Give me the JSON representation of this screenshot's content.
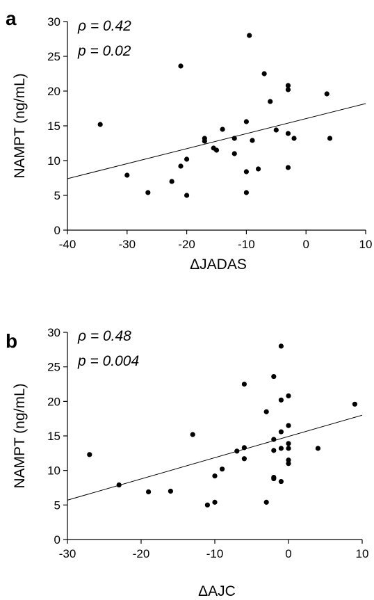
{
  "chart_data": [
    {
      "type": "scatter",
      "panel_label": "a",
      "annotations": [
        "ρ = 0.42",
        "p = 0.02"
      ],
      "xlabel": "ΔJADAS",
      "ylabel": "NAMPT (ng/mL)",
      "xlim": [
        -40,
        10
      ],
      "ylim": [
        0,
        30
      ],
      "xticks": [
        -40,
        -30,
        -20,
        -10,
        0,
        10
      ],
      "yticks": [
        0,
        5,
        10,
        15,
        20,
        25,
        30
      ],
      "trendline": {
        "x": [
          -40,
          10
        ],
        "y": [
          7.4,
          18.2
        ]
      },
      "points": [
        {
          "x": -34.5,
          "y": 15.2
        },
        {
          "x": -30,
          "y": 7.9
        },
        {
          "x": -26.5,
          "y": 5.4
        },
        {
          "x": -22.5,
          "y": 7.0
        },
        {
          "x": -21,
          "y": 23.6
        },
        {
          "x": -21,
          "y": 9.2
        },
        {
          "x": -20,
          "y": 10.2
        },
        {
          "x": -20,
          "y": 5.0
        },
        {
          "x": -17,
          "y": 13.2
        },
        {
          "x": -17,
          "y": 12.8
        },
        {
          "x": -15.5,
          "y": 11.8
        },
        {
          "x": -15,
          "y": 11.5
        },
        {
          "x": -14,
          "y": 14.5
        },
        {
          "x": -12,
          "y": 13.2
        },
        {
          "x": -12,
          "y": 11.0
        },
        {
          "x": -10,
          "y": 15.6
        },
        {
          "x": -10,
          "y": 8.4
        },
        {
          "x": -10,
          "y": 5.4
        },
        {
          "x": -9.5,
          "y": 28.0
        },
        {
          "x": -9,
          "y": 12.9
        },
        {
          "x": -8,
          "y": 8.8
        },
        {
          "x": -7,
          "y": 22.5
        },
        {
          "x": -6,
          "y": 18.5
        },
        {
          "x": -5,
          "y": 14.4
        },
        {
          "x": -3,
          "y": 20.8
        },
        {
          "x": -3,
          "y": 20.2
        },
        {
          "x": -3,
          "y": 13.9
        },
        {
          "x": -3,
          "y": 9.0
        },
        {
          "x": -2,
          "y": 13.2
        },
        {
          "x": 3.5,
          "y": 19.6
        },
        {
          "x": 4,
          "y": 13.2
        }
      ]
    },
    {
      "type": "scatter",
      "panel_label": "b",
      "annotations": [
        "ρ = 0.48",
        "p = 0.004"
      ],
      "xlabel": "ΔAJC",
      "ylabel": "NAMPT (ng/mL)",
      "xlim": [
        -30,
        10
      ],
      "ylim": [
        0,
        30
      ],
      "xticks": [
        -30,
        -20,
        -10,
        0,
        10
      ],
      "yticks": [
        0,
        5,
        10,
        15,
        20,
        25,
        30
      ],
      "trendline": {
        "x": [
          -30,
          10
        ],
        "y": [
          5.7,
          18.0
        ]
      },
      "points": [
        {
          "x": -27,
          "y": 12.3
        },
        {
          "x": -23,
          "y": 7.9
        },
        {
          "x": -19,
          "y": 6.9
        },
        {
          "x": -16,
          "y": 7.0
        },
        {
          "x": -13,
          "y": 15.2
        },
        {
          "x": -11,
          "y": 5.0
        },
        {
          "x": -10,
          "y": 9.2
        },
        {
          "x": -10,
          "y": 5.4
        },
        {
          "x": -9,
          "y": 10.2
        },
        {
          "x": -7,
          "y": 12.8
        },
        {
          "x": -6,
          "y": 22.5
        },
        {
          "x": -6,
          "y": 13.3
        },
        {
          "x": -6,
          "y": 11.7
        },
        {
          "x": -3,
          "y": 18.5
        },
        {
          "x": -3,
          "y": 5.4
        },
        {
          "x": -2,
          "y": 23.6
        },
        {
          "x": -2,
          "y": 14.5
        },
        {
          "x": -2,
          "y": 12.9
        },
        {
          "x": -2,
          "y": 9.0
        },
        {
          "x": -2,
          "y": 8.8
        },
        {
          "x": -1,
          "y": 28.0
        },
        {
          "x": -1,
          "y": 20.2
        },
        {
          "x": -1,
          "y": 15.6
        },
        {
          "x": -1,
          "y": 13.2
        },
        {
          "x": -1,
          "y": 8.4
        },
        {
          "x": 0,
          "y": 20.8
        },
        {
          "x": 0,
          "y": 16.5
        },
        {
          "x": 0,
          "y": 13.9
        },
        {
          "x": 0,
          "y": 13.2
        },
        {
          "x": 0,
          "y": 11.5
        },
        {
          "x": 0,
          "y": 11.0
        },
        {
          "x": 4,
          "y": 13.2
        },
        {
          "x": 9,
          "y": 19.6
        }
      ]
    }
  ]
}
